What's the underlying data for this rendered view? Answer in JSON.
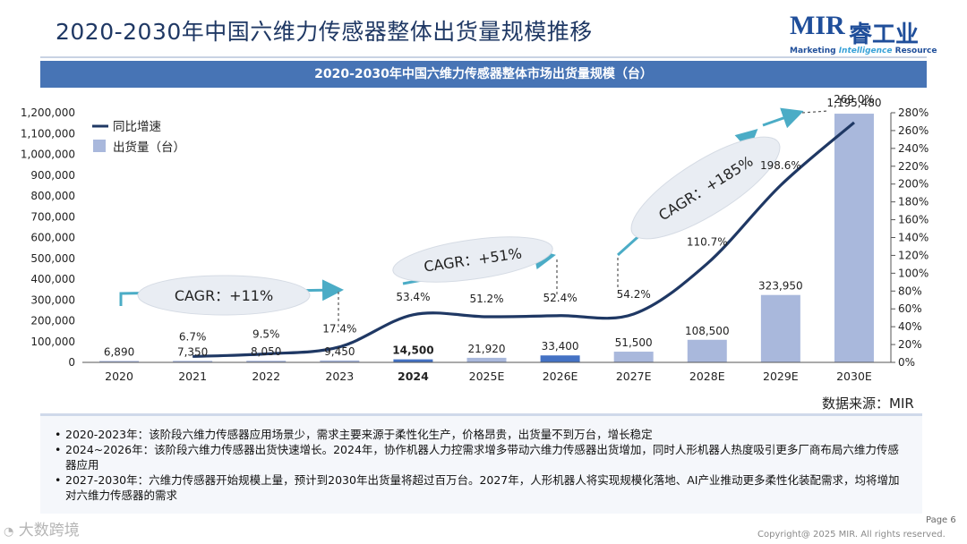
{
  "header": {
    "title": "2020-2030年中国六维力传感器整体出货量规模推移",
    "banner": "2020-2030年中国六维力传感器整体市场出货量规模（台）"
  },
  "logo": {
    "main": "MIR",
    "cn": "睿工业",
    "sub_a": "Marketing ",
    "sub_b": "Intelligence",
    "sub_c": " Resource"
  },
  "chart_data": {
    "type": "bar+line",
    "title": "2020-2030年中国六维力传感器整体市场出货量规模（台）",
    "categories": [
      "2020",
      "2021",
      "2022",
      "2023",
      "2024",
      "2025E",
      "2026E",
      "2027E",
      "2028E",
      "2029E",
      "2030E"
    ],
    "bold_category": "2024",
    "series": [
      {
        "name": "出货量（台）",
        "type": "bar",
        "axis": "left",
        "values": [
          6890,
          7350,
          8050,
          9450,
          14500,
          21920,
          33400,
          51500,
          108500,
          323950,
          1195480
        ],
        "labels": [
          "6,890",
          "7,350",
          "8,050",
          "9,450",
          "14,500",
          "21,920",
          "33,400",
          "51,500",
          "108,500",
          "323,950",
          "1,195,480"
        ]
      },
      {
        "name": "同比增速",
        "type": "line",
        "axis": "right",
        "values": [
          null,
          6.7,
          9.5,
          17.4,
          53.4,
          51.2,
          52.4,
          54.2,
          110.7,
          198.6,
          269.0
        ],
        "labels": [
          "",
          "6.7%",
          "9.5%",
          "17.4%",
          "53.4%",
          "51.2%",
          "52.4%",
          "54.2%",
          "110.7%",
          "198.6%",
          "269.0%"
        ]
      }
    ],
    "left_axis": {
      "min": 0,
      "max": 1200000,
      "step": 100000,
      "ticks": [
        "0",
        "100,000",
        "200,000",
        "300,000",
        "400,000",
        "500,000",
        "600,000",
        "700,000",
        "800,000",
        "900,000",
        "1,000,000",
        "1,100,000",
        "1,200,000"
      ]
    },
    "right_axis": {
      "min": 0,
      "max": 280,
      "step": 20,
      "ticks": [
        "0%",
        "20%",
        "40%",
        "60%",
        "80%",
        "100%",
        "120%",
        "140%",
        "160%",
        "180%",
        "200%",
        "220%",
        "240%",
        "260%",
        "280%"
      ]
    },
    "legend": [
      {
        "label": "同比增速",
        "kind": "line",
        "color": "#1f3864"
      },
      {
        "label": "出货量（台）",
        "kind": "bar",
        "color": "#a9b8dc"
      }
    ],
    "annotations": [
      {
        "label": "CAGR：+11%",
        "from": "2020",
        "to": "2023"
      },
      {
        "label": "CAGR：+51%",
        "from": "2023",
        "to": "2026E"
      },
      {
        "label": "CAGR：+185%",
        "from": "2027E",
        "to": "2030E"
      }
    ]
  },
  "colors": {
    "bar": "#a9b8dc",
    "bar_dark": "#4472c4",
    "line": "#1f3864",
    "arrow": "#4bacc6",
    "banner": "#4774b5",
    "title": "#1f3864"
  },
  "source": "数据来源：MIR",
  "notes": [
    "2020-2023年：该阶段六维力传感器应用场景少，需求主要来源于柔性化生产，价格昂贵，出货量不到万台，增长稳定",
    "2024~2026年：该阶段六维力传感器出货快速增长。2024年，协作机器人力控需求增多带动六维力传感器出货增加，同时人形机器人热度吸引更多厂商布局六维力传感器应用",
    "2027-2030年：六维力传感器开始规模上量，预计到2030年出货量将超过百万台。2027年，人形机器人将实现规模化落地、AI产业推动更多柔性化装配需求，均将增加对六维力传感器的需求"
  ],
  "footer": {
    "page": "Page 6",
    "copyright": "Copyright@ 2025 MIR. All rights reserved.",
    "watermark": "大数跨境"
  }
}
